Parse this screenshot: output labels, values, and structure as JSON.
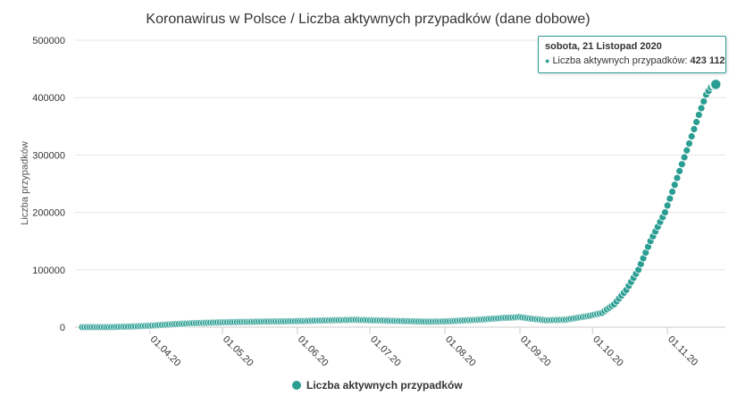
{
  "chart_data": {
    "type": "scatter",
    "title": "Koronawirus w Polsce / Liczba aktywnych przypadków (dane dobowe)",
    "xlabel": "",
    "ylabel": "Liczba przypadków",
    "x_range": [
      "2020-03-04",
      "2020-11-22"
    ],
    "ylim": [
      0,
      500000
    ],
    "y_ticks": [
      "0",
      "100000",
      "200000",
      "300000",
      "400000",
      "500000"
    ],
    "x_ticks": [
      {
        "date": "2020-04-01",
        "label": "01.04.20"
      },
      {
        "date": "2020-05-01",
        "label": "01.05.20"
      },
      {
        "date": "2020-06-01",
        "label": "01.06.20"
      },
      {
        "date": "2020-07-01",
        "label": "01.07.20"
      },
      {
        "date": "2020-08-01",
        "label": "01.08.20"
      },
      {
        "date": "2020-09-01",
        "label": "01.09.20"
      },
      {
        "date": "2020-10-01",
        "label": "01.10.20"
      },
      {
        "date": "2020-11-01",
        "label": "01.11.20"
      }
    ],
    "grid": true,
    "legend_position": "bottom-center",
    "series": [
      {
        "name": "Liczba aktywnych przypadków",
        "color": "#2b9e93",
        "points": [
          [
            "2020-03-04",
            1
          ],
          [
            "2020-03-15",
            100
          ],
          [
            "2020-03-25",
            1200
          ],
          [
            "2020-04-01",
            2500
          ],
          [
            "2020-04-10",
            5000
          ],
          [
            "2020-04-20",
            7000
          ],
          [
            "2020-05-01",
            8500
          ],
          [
            "2020-05-15",
            9500
          ],
          [
            "2020-06-01",
            10500
          ],
          [
            "2020-06-15",
            12000
          ],
          [
            "2020-06-25",
            12800
          ],
          [
            "2020-07-01",
            12000
          ],
          [
            "2020-07-15",
            10500
          ],
          [
            "2020-07-25",
            9500
          ],
          [
            "2020-08-01",
            10000
          ],
          [
            "2020-08-15",
            13000
          ],
          [
            "2020-08-25",
            16000
          ],
          [
            "2020-09-01",
            17500
          ],
          [
            "2020-09-05",
            15000
          ],
          [
            "2020-09-12",
            12000
          ],
          [
            "2020-09-20",
            13000
          ],
          [
            "2020-09-30",
            20000
          ],
          [
            "2020-10-05",
            25000
          ],
          [
            "2020-10-10",
            40000
          ],
          [
            "2020-10-15",
            65000
          ],
          [
            "2020-10-20",
            100000
          ],
          [
            "2020-10-25",
            150000
          ],
          [
            "2020-10-31",
            200000
          ],
          [
            "2020-11-05",
            260000
          ],
          [
            "2020-11-10",
            320000
          ],
          [
            "2020-11-14",
            370000
          ],
          [
            "2020-11-17",
            405000
          ],
          [
            "2020-11-19",
            418000
          ],
          [
            "2020-11-21",
            423112
          ],
          [
            "2020-11-22",
            423500
          ]
        ]
      }
    ],
    "tooltip": {
      "date": "sobota, 21 Listopad 2020",
      "label": "Liczba aktywnych przypadków: ",
      "value": "423 112"
    }
  }
}
